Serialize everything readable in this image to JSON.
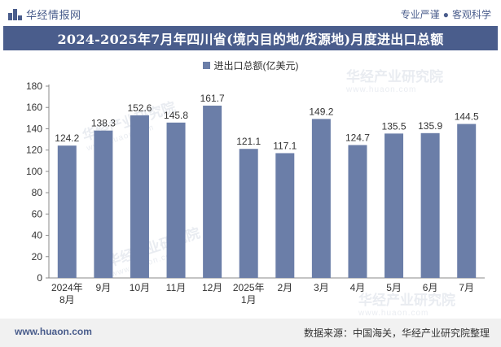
{
  "header": {
    "brand": "华经情报网",
    "slogan_left": "专业严谨",
    "slogan_dot": "●",
    "slogan_right": "客观科学"
  },
  "watermark": {
    "text": "华经产业研究院",
    "url": "www.huaon.com"
  },
  "chart_data": {
    "type": "bar",
    "title": "2024-2025年7月年四川省(境内目的地/货源地)月度进出口总额",
    "legend": [
      "进出口总额(亿美元)"
    ],
    "categories": [
      "2024年\n8月",
      "9月",
      "10月",
      "11月",
      "12月",
      "2025年\n1月",
      "2月",
      "3月",
      "4月",
      "5月",
      "6月",
      "7月"
    ],
    "series": [
      {
        "name": "进出口总额(亿美元)",
        "values": [
          124.2,
          138.3,
          152.6,
          145.8,
          161.7,
          121.1,
          117.1,
          149.2,
          124.7,
          135.5,
          135.9,
          144.5
        ]
      }
    ],
    "ylim": [
      0,
      180
    ],
    "yticks": [
      0,
      20,
      40,
      60,
      80,
      100,
      120,
      140,
      160,
      180
    ],
    "xlabel": "",
    "ylabel": "",
    "bar_color": "#6b7ea8",
    "grid": false,
    "legend_position": "top-center"
  },
  "footer": {
    "url": "www.huaon.com",
    "source": "数据来源：中国海关，华经产业研究院整理"
  },
  "colors": {
    "primary": "#4a5d8c",
    "bar": "#6b7ea8"
  }
}
